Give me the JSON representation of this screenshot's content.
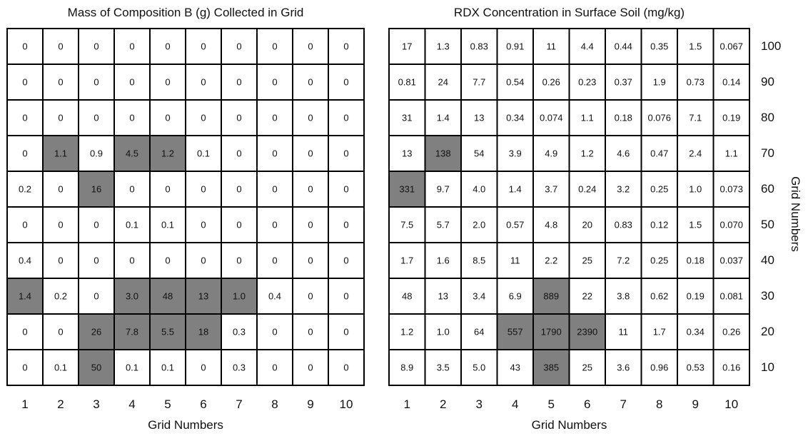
{
  "chart_data": [
    {
      "type": "heatmap",
      "title": "Mass of Composition B (g) Collected in Grid",
      "xlabel": "Grid Numbers",
      "x_ticks": [
        "1",
        "2",
        "3",
        "4",
        "5",
        "6",
        "7",
        "8",
        "9",
        "10"
      ],
      "y_ticks": [
        "100",
        "90",
        "80",
        "70",
        "60",
        "50",
        "40",
        "30",
        "20",
        "10"
      ],
      "rows": [
        [
          "0",
          "0",
          "0",
          "0",
          "0",
          "0",
          "0",
          "0",
          "0",
          "0"
        ],
        [
          "0",
          "0",
          "0",
          "0",
          "0",
          "0",
          "0",
          "0",
          "0",
          "0"
        ],
        [
          "0",
          "0",
          "0",
          "0",
          "0",
          "0",
          "0",
          "0",
          "0",
          "0"
        ],
        [
          "0",
          "1.1",
          "0.9",
          "4.5",
          "1.2",
          "0.1",
          "0",
          "0",
          "0",
          "0"
        ],
        [
          "0.2",
          "0",
          "16",
          "0",
          "0",
          "0",
          "0",
          "0",
          "0",
          "0"
        ],
        [
          "0",
          "0",
          "0",
          "0.1",
          "0.1",
          "0",
          "0",
          "0",
          "0",
          "0"
        ],
        [
          "0.4",
          "0",
          "0",
          "0",
          "0",
          "0",
          "0",
          "0",
          "0",
          "0"
        ],
        [
          "1.4",
          "0.2",
          "0",
          "3.0",
          "48",
          "13",
          "1.0",
          "0.4",
          "0",
          "0"
        ],
        [
          "0",
          "0",
          "26",
          "7.8",
          "5.5",
          "18",
          "0.3",
          "0",
          "0",
          "0"
        ],
        [
          "0",
          "0.1",
          "50",
          "0.1",
          "0.1",
          "0",
          "0.3",
          "0",
          "0",
          "0"
        ]
      ],
      "highlighted": [
        [
          0,
          0,
          0,
          0,
          0,
          0,
          0,
          0,
          0,
          0
        ],
        [
          0,
          0,
          0,
          0,
          0,
          0,
          0,
          0,
          0,
          0
        ],
        [
          0,
          0,
          0,
          0,
          0,
          0,
          0,
          0,
          0,
          0
        ],
        [
          0,
          1,
          0,
          1,
          1,
          0,
          0,
          0,
          0,
          0
        ],
        [
          0,
          0,
          1,
          0,
          0,
          0,
          0,
          0,
          0,
          0
        ],
        [
          0,
          0,
          0,
          0,
          0,
          0,
          0,
          0,
          0,
          0
        ],
        [
          0,
          0,
          0,
          0,
          0,
          0,
          0,
          0,
          0,
          0
        ],
        [
          1,
          0,
          0,
          1,
          1,
          1,
          1,
          0,
          0,
          0
        ],
        [
          0,
          0,
          1,
          1,
          1,
          1,
          0,
          0,
          0,
          0
        ],
        [
          0,
          0,
          1,
          0,
          0,
          0,
          0,
          0,
          0,
          0
        ]
      ]
    },
    {
      "type": "heatmap",
      "title": "RDX Concentration in Surface Soil (mg/kg)",
      "xlabel": "Grid Numbers",
      "ylabel": "Grid Numbers",
      "x_ticks": [
        "1",
        "2",
        "3",
        "4",
        "5",
        "6",
        "7",
        "8",
        "9",
        "10"
      ],
      "y_ticks": [
        "100",
        "90",
        "80",
        "70",
        "60",
        "50",
        "40",
        "30",
        "20",
        "10"
      ],
      "rows": [
        [
          "17",
          "1.3",
          "0.83",
          "0.91",
          "11",
          "4.4",
          "0.44",
          "0.35",
          "1.5",
          "0.067"
        ],
        [
          "0.81",
          "24",
          "7.7",
          "0.54",
          "0.26",
          "0.23",
          "0.37",
          "1.9",
          "0.73",
          "0.14"
        ],
        [
          "31",
          "1.4",
          "13",
          "0.34",
          "0.074",
          "1.1",
          "0.18",
          "0.076",
          "7.1",
          "0.19"
        ],
        [
          "13",
          "138",
          "54",
          "3.9",
          "4.9",
          "1.2",
          "4.6",
          "0.47",
          "2.4",
          "1.1"
        ],
        [
          "331",
          "9.7",
          "4.0",
          "1.4",
          "3.7",
          "0.24",
          "3.2",
          "0.25",
          "1.0",
          "0.073"
        ],
        [
          "7.5",
          "5.7",
          "2.0",
          "0.57",
          "4.8",
          "20",
          "0.83",
          "0.12",
          "1.5",
          "0.070"
        ],
        [
          "1.7",
          "1.6",
          "8.5",
          "11",
          "2.2",
          "25",
          "7.2",
          "0.25",
          "0.18",
          "0.037"
        ],
        [
          "48",
          "13",
          "3.4",
          "6.9",
          "889",
          "22",
          "3.8",
          "0.62",
          "0.19",
          "0.081"
        ],
        [
          "1.2",
          "1.0",
          "64",
          "557",
          "1790",
          "2390",
          "11",
          "1.7",
          "0.34",
          "0.26"
        ],
        [
          "8.9",
          "3.5",
          "5.0",
          "43",
          "385",
          "25",
          "3.6",
          "0.96",
          "0.53",
          "0.16"
        ]
      ],
      "highlighted": [
        [
          0,
          0,
          0,
          0,
          0,
          0,
          0,
          0,
          0,
          0
        ],
        [
          0,
          0,
          0,
          0,
          0,
          0,
          0,
          0,
          0,
          0
        ],
        [
          0,
          0,
          0,
          0,
          0,
          0,
          0,
          0,
          0,
          0
        ],
        [
          0,
          1,
          0,
          0,
          0,
          0,
          0,
          0,
          0,
          0
        ],
        [
          1,
          0,
          0,
          0,
          0,
          0,
          0,
          0,
          0,
          0
        ],
        [
          0,
          0,
          0,
          0,
          0,
          0,
          0,
          0,
          0,
          0
        ],
        [
          0,
          0,
          0,
          0,
          0,
          0,
          0,
          0,
          0,
          0
        ],
        [
          0,
          0,
          0,
          0,
          1,
          0,
          0,
          0,
          0,
          0
        ],
        [
          0,
          0,
          0,
          1,
          1,
          1,
          0,
          0,
          0,
          0
        ],
        [
          0,
          0,
          0,
          0,
          1,
          0,
          0,
          0,
          0,
          0
        ]
      ]
    }
  ],
  "colors": {
    "highlight": "#808080",
    "cell": "#ffffff",
    "border": "#000000"
  }
}
